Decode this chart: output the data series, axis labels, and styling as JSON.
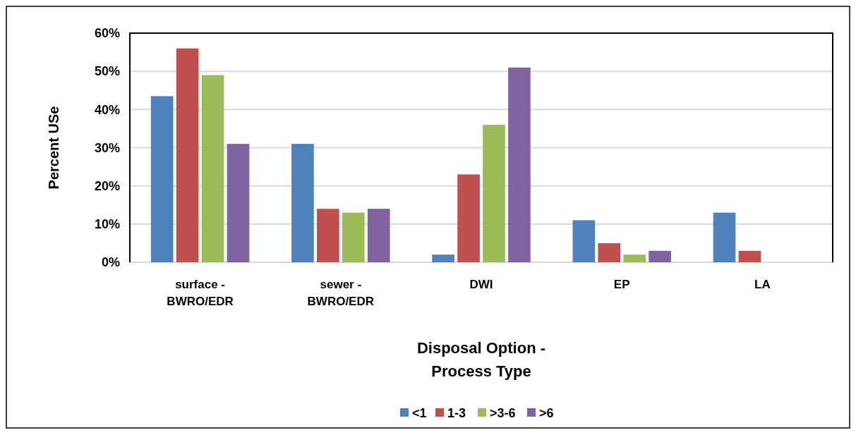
{
  "chart_data": {
    "type": "bar",
    "xlabel": "Disposal Option - Process Type",
    "ylabel": "Percent USe",
    "categories": [
      "surface - BWRO/EDR",
      "sewer - BWRO/EDR",
      "DWI",
      "EP",
      "LA"
    ],
    "series": [
      {
        "name": "<1",
        "color": "#4f81bd",
        "values": [
          43.5,
          31,
          2,
          11,
          13
        ]
      },
      {
        "name": "1-3",
        "color": "#c0504d",
        "values": [
          56,
          14,
          23,
          5,
          3
        ]
      },
      {
        "name": ">3-6",
        "color": "#9bbb59",
        "values": [
          49,
          13,
          36,
          2,
          0
        ]
      },
      {
        "name": ">6",
        "color": "#8064a2",
        "values": [
          31,
          14,
          51,
          3,
          0
        ]
      }
    ],
    "ylim": [
      0,
      60
    ],
    "yticks": [
      {
        "value": 0,
        "label": "0%"
      },
      {
        "value": 10,
        "label": "10%"
      },
      {
        "value": 20,
        "label": "20%"
      },
      {
        "value": 30,
        "label": "30%"
      },
      {
        "value": 40,
        "label": "40%"
      },
      {
        "value": 50,
        "label": "50%"
      },
      {
        "value": 60,
        "label": "60%"
      }
    ],
    "grid": "y",
    "legend": "bottom"
  }
}
